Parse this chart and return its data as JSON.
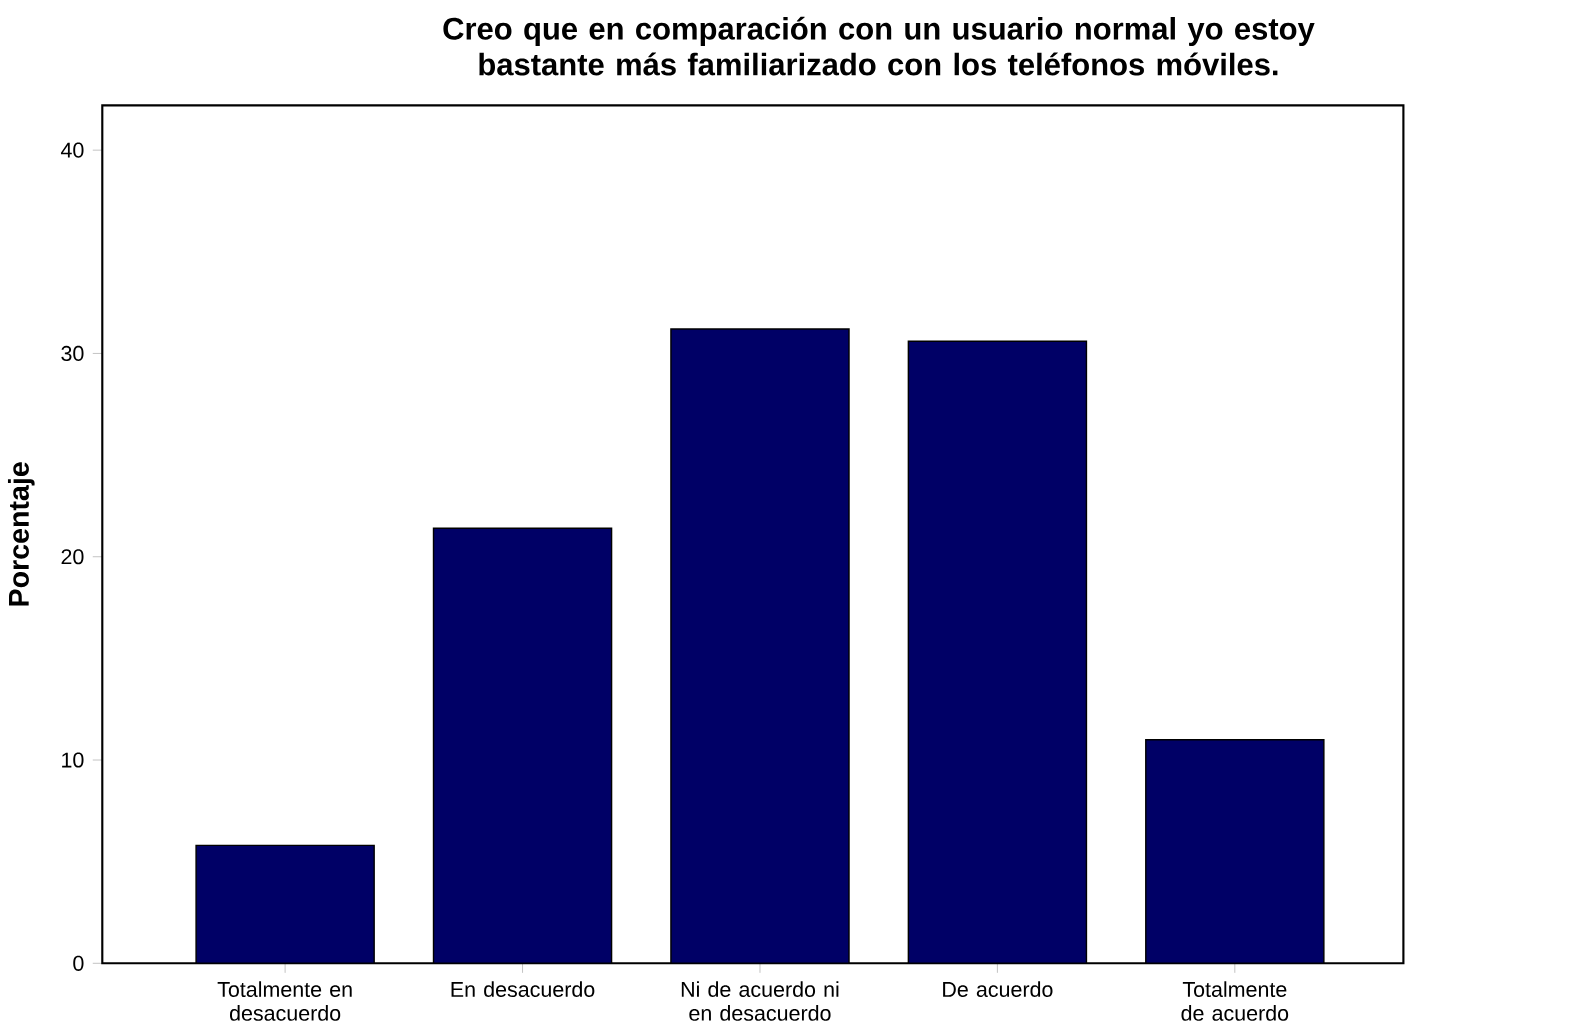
{
  "chart_data": {
    "type": "bar",
    "title": "Creo que en comparación con un usuario normal yo estoy bastante más familiarizado con los teléfonos móviles.",
    "ylabel": "Porcentaje",
    "categories": [
      "Totalmente en desacuerdo",
      "En desacuerdo",
      "Ni de acuerdo ni en desacuerdo",
      "De acuerdo",
      "Totalmente de acuerdo"
    ],
    "values": [
      5.8,
      21.4,
      31.2,
      30.6,
      11.0
    ],
    "color": "#000066",
    "ylim": [
      0,
      42.2
    ],
    "yticks": [
      0,
      10,
      20,
      30,
      40
    ]
  }
}
